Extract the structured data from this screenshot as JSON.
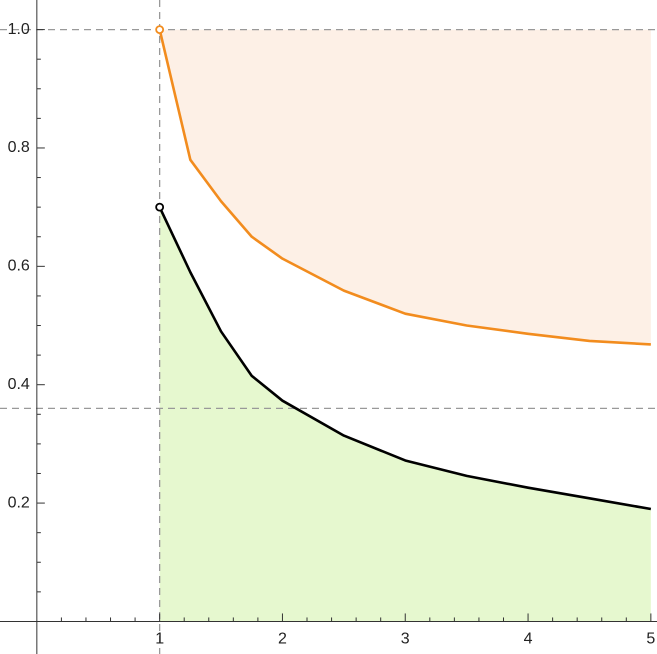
{
  "chart_data": {
    "type": "line",
    "x": [
      1,
      1.25,
      1.5,
      1.75,
      2,
      2.5,
      3,
      3.5,
      4,
      4.5,
      5
    ],
    "series": [
      {
        "color": "#f28c1e",
        "fill_color": "#fdf0e6",
        "fill_to": 1,
        "values": [
          1.0,
          0.78,
          0.71,
          0.65,
          0.613,
          0.559,
          0.52,
          0.5,
          0.486,
          0.474,
          0.468
        ]
      },
      {
        "color": "#000000",
        "fill_color": "#e6f8cf",
        "fill_to": 0,
        "values": [
          0.7,
          0.59,
          0.49,
          0.415,
          0.373,
          0.314,
          0.272,
          0.246,
          0.226,
          0.208,
          0.19
        ]
      }
    ],
    "open_start_marker": true,
    "hlines": [
      0.36,
      1
    ],
    "vlines": [
      1
    ],
    "xlim": [
      -0.3,
      5.05
    ],
    "ylim": [
      -0.055,
      1.05
    ],
    "xticks": [
      1,
      2,
      3,
      4,
      5
    ],
    "yticks": [
      0.2,
      0.4,
      0.6,
      0.8,
      {
        "value": 1,
        "label": "1.0"
      }
    ],
    "xminorticks": [
      0.2,
      0.4,
      0.6,
      0.8,
      1.2,
      1.4,
      1.6,
      1.8,
      2.2,
      2.4,
      2.6,
      2.8,
      3.2,
      3.4,
      3.6,
      3.8,
      4.2,
      4.4,
      4.6,
      4.8
    ],
    "yminorticks": [
      0.05,
      0.1,
      0.15,
      0.25,
      0.3,
      0.35,
      0.45,
      0.5,
      0.55,
      0.65,
      0.7,
      0.75,
      0.85,
      0.9,
      0.95
    ]
  }
}
